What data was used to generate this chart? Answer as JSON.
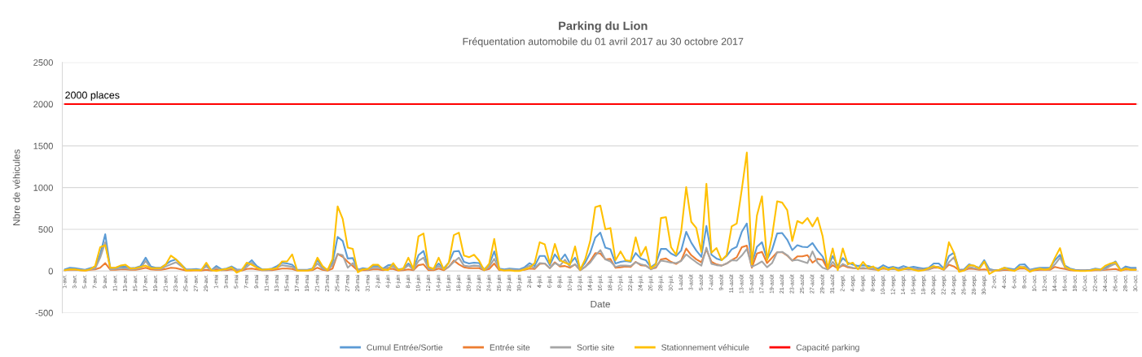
{
  "chart_data": {
    "type": "line",
    "title": "Parking du Lion",
    "subtitle": "Fréquentation automobile du 01 avril 2017 au 30 octobre 2017",
    "xlabel": "Date",
    "ylabel": "Nbre de véhicules",
    "categories": [
      "1-avr.",
      null,
      "3-avr.",
      null,
      "5-avr.",
      null,
      "7-avr.",
      null,
      "9-avr.",
      null,
      "11-avr.",
      null,
      "13-avr.",
      null,
      "15-avr.",
      null,
      "17-avr.",
      null,
      "19-avr.",
      null,
      "21-avr.",
      null,
      "23-avr.",
      null,
      "25-avr.",
      null,
      "27-avr.",
      null,
      "29-avr.",
      null,
      "1-mai",
      null,
      "3-mai",
      null,
      "5-mai",
      null,
      "7-mai",
      null,
      "9-mai",
      null,
      "11-mai",
      null,
      "13-mai",
      null,
      "15-mai",
      null,
      "17-mai",
      null,
      "19-mai",
      null,
      "21-mai",
      null,
      "23-mai",
      null,
      "25-mai",
      null,
      "27-mai",
      null,
      "29-mai",
      null,
      "31-mai",
      null,
      "2-juin",
      null,
      "4-juin",
      null,
      "6-juin",
      null,
      "8-juin",
      null,
      "10-juin",
      null,
      "12-juin",
      null,
      "14-juin",
      null,
      "16-juin",
      null,
      "18-juin",
      null,
      "20-juin",
      null,
      "22-juin",
      null,
      "24-juin",
      null,
      "26-juin",
      null,
      "28-juin",
      null,
      "30-juin",
      null,
      "2-juil.",
      null,
      "4-juil.",
      null,
      "6-juil.",
      null,
      "8-juil.",
      null,
      "10-juil.",
      null,
      "12-juil.",
      null,
      "14-juil.",
      null,
      "16-juil.",
      null,
      "18-juil.",
      null,
      "20-juil.",
      null,
      "22-juil.",
      null,
      "24-juil.",
      null,
      "26-juil.",
      null,
      "28-juil.",
      null,
      "30-juil.",
      null,
      "1-août",
      null,
      "3-août",
      null,
      "5-août",
      null,
      "7-août",
      null,
      "9-août",
      null,
      "11-août",
      null,
      "13-août",
      null,
      "15-août",
      null,
      "17-août",
      null,
      "19-août",
      null,
      "21-août",
      null,
      "23-août",
      null,
      "25-août",
      null,
      "27-août",
      null,
      "29-août",
      null,
      "31-août",
      null,
      "2-sept.",
      null,
      "4-sept.",
      null,
      "6-sept.",
      null,
      "8-sept.",
      null,
      "10-sept.",
      null,
      "12-sept.",
      null,
      "14-sept.",
      null,
      "16-sept.",
      null,
      "18-sept.",
      null,
      "20-sept.",
      null,
      "22-sept.",
      null,
      "24-sept.",
      null,
      "26-sept.",
      null,
      "28-sept.",
      null,
      "30-sept.",
      null,
      "2-oct.",
      null,
      "4-oct.",
      null,
      "6-oct.",
      null,
      "8-oct.",
      null,
      "10-oct.",
      null,
      "12-oct.",
      null,
      "14-oct.",
      null,
      "16-oct.",
      null,
      "18-oct.",
      null,
      "20-oct.",
      null,
      "22-oct.",
      null,
      "24-oct.",
      null,
      "26-oct.",
      null,
      "28-oct.",
      null,
      "30-oct."
    ],
    "series": [
      {
        "name": "Cumul Entrée/Sortie",
        "color": "#5b9bd5",
        "values": [
          20,
          40,
          35,
          25,
          15,
          35,
          50,
          200,
          440,
          35,
          40,
          50,
          55,
          35,
          40,
          60,
          160,
          55,
          40,
          40,
          80,
          120,
          140,
          80,
          20,
          20,
          25,
          15,
          70,
          10,
          60,
          20,
          30,
          55,
          20,
          15,
          75,
          130,
          60,
          20,
          20,
          30,
          60,
          100,
          90,
          75,
          15,
          15,
          15,
          30,
          130,
          45,
          15,
          100,
          410,
          360,
          150,
          155,
          15,
          35,
          25,
          60,
          60,
          30,
          70,
          75,
          20,
          30,
          90,
          25,
          190,
          240,
          35,
          30,
          90,
          30,
          100,
          235,
          240,
          110,
          90,
          100,
          95,
          20,
          75,
          235,
          30,
          20,
          30,
          25,
          20,
          45,
          95,
          60,
          180,
          180,
          70,
          200,
          120,
          200,
          90,
          160,
          20,
          100,
          220,
          400,
          460,
          280,
          260,
          90,
          110,
          120,
          110,
          215,
          150,
          130,
          45,
          90,
          265,
          265,
          210,
          180,
          245,
          470,
          340,
          245,
          170,
          540,
          195,
          150,
          130,
          180,
          260,
          290,
          470,
          570,
          90,
          290,
          345,
          140,
          255,
          450,
          455,
          375,
          250,
          310,
          290,
          285,
          335,
          245,
          175,
          40,
          180,
          60,
          155,
          100,
          75,
          60,
          70,
          60,
          45,
          30,
          70,
          40,
          50,
          35,
          60,
          40,
          50,
          40,
          30,
          40,
          90,
          90,
          30,
          180,
          220,
          15,
          20,
          80,
          60,
          40,
          130,
          25,
          10,
          15,
          40,
          30,
          20,
          75,
          80,
          15,
          30,
          40,
          40,
          40,
          130,
          195,
          65,
          30,
          15,
          10,
          10,
          15,
          30,
          20,
          40,
          80,
          115,
          15,
          55,
          40,
          40
        ]
      },
      {
        "name": "Entrée site",
        "color": "#ed7d31",
        "values": [
          10,
          15,
          15,
          10,
          5,
          15,
          20,
          40,
          95,
          15,
          15,
          20,
          20,
          15,
          15,
          25,
          40,
          20,
          15,
          15,
          25,
          40,
          35,
          20,
          5,
          5,
          10,
          5,
          15,
          5,
          20,
          10,
          10,
          20,
          5,
          5,
          25,
          30,
          20,
          10,
          10,
          10,
          20,
          30,
          30,
          25,
          5,
          5,
          5,
          10,
          40,
          15,
          5,
          30,
          205,
          170,
          110,
          60,
          5,
          10,
          10,
          20,
          20,
          10,
          25,
          25,
          5,
          10,
          20,
          10,
          70,
          80,
          10,
          10,
          30,
          10,
          50,
          125,
          80,
          45,
          35,
          35,
          35,
          10,
          25,
          90,
          10,
          10,
          10,
          10,
          10,
          15,
          30,
          25,
          85,
          90,
          35,
          105,
          55,
          60,
          40,
          80,
          10,
          50,
          120,
          215,
          210,
          140,
          145,
          40,
          45,
          55,
          50,
          110,
          70,
          65,
          25,
          40,
          140,
          150,
          110,
          85,
          125,
          270,
          190,
          140,
          105,
          260,
          110,
          80,
          65,
          90,
          130,
          165,
          285,
          305,
          40,
          210,
          230,
          95,
          160,
          225,
          225,
          185,
          125,
          175,
          175,
          190,
          100,
          145,
          135,
          20,
          70,
          30,
          70,
          45,
          35,
          30,
          30,
          30,
          20,
          15,
          30,
          20,
          25,
          15,
          25,
          20,
          20,
          20,
          15,
          20,
          40,
          40,
          15,
          75,
          55,
          10,
          10,
          30,
          25,
          15,
          20,
          10,
          5,
          5,
          15,
          10,
          10,
          30,
          30,
          5,
          10,
          15,
          15,
          15,
          50,
          35,
          25,
          10,
          5,
          5,
          5,
          5,
          10,
          10,
          15,
          20,
          25,
          5,
          20,
          15,
          15
        ]
      },
      {
        "name": "Sortie site",
        "color": "#a5a5a5",
        "values": [
          10,
          25,
          20,
          15,
          10,
          20,
          30,
          160,
          345,
          20,
          25,
          30,
          35,
          20,
          25,
          35,
          120,
          35,
          25,
          25,
          55,
          80,
          105,
          60,
          15,
          15,
          15,
          10,
          55,
          5,
          40,
          10,
          20,
          35,
          15,
          10,
          50,
          100,
          40,
          10,
          10,
          20,
          40,
          70,
          60,
          50,
          10,
          10,
          10,
          20,
          90,
          30,
          10,
          70,
          205,
          190,
          40,
          95,
          10,
          25,
          15,
          40,
          40,
          20,
          45,
          50,
          15,
          20,
          70,
          15,
          120,
          160,
          25,
          20,
          60,
          20,
          50,
          110,
          160,
          65,
          55,
          65,
          60,
          10,
          50,
          145,
          20,
          10,
          20,
          15,
          10,
          30,
          65,
          35,
          95,
          90,
          35,
          95,
          65,
          135,
          50,
          80,
          10,
          50,
          100,
          185,
          250,
          140,
          115,
          50,
          65,
          65,
          60,
          105,
          80,
          65,
          20,
          50,
          125,
          115,
          100,
          95,
          120,
          200,
          150,
          105,
          65,
          280,
          85,
          70,
          65,
          90,
          130,
          125,
          185,
          265,
          50,
          80,
          115,
          45,
          95,
          225,
          230,
          190,
          125,
          135,
          115,
          95,
          235,
          100,
          40,
          20,
          110,
          30,
          85,
          55,
          40,
          30,
          40,
          30,
          25,
          15,
          40,
          20,
          25,
          20,
          35,
          20,
          30,
          20,
          15,
          20,
          50,
          50,
          15,
          105,
          165,
          5,
          10,
          50,
          35,
          25,
          110,
          15,
          5,
          10,
          25,
          20,
          10,
          45,
          50,
          10,
          20,
          25,
          25,
          25,
          80,
          160,
          40,
          20,
          10,
          5,
          5,
          10,
          20,
          10,
          25,
          60,
          90,
          10,
          35,
          25,
          25
        ]
      },
      {
        "name": "Stationnement véhicule",
        "color": "#ffc000",
        "values": [
          10,
          20,
          20,
          10,
          5,
          20,
          60,
          285,
          310,
          40,
          40,
          65,
          75,
          30,
          35,
          50,
          65,
          35,
          35,
          35,
          80,
          185,
          140,
          80,
          5,
          10,
          10,
          10,
          100,
          10,
          0,
          15,
          25,
          45,
          -20,
          10,
          100,
          75,
          40,
          15,
          20,
          25,
          35,
          115,
          115,
          200,
          5,
          5,
          5,
          20,
          160,
          60,
          10,
          145,
          775,
          625,
          280,
          265,
          -15,
          20,
          25,
          75,
          75,
          20,
          10,
          95,
          10,
          30,
          160,
          25,
          415,
          450,
          50,
          25,
          160,
          20,
          100,
          430,
          460,
          185,
          165,
          195,
          125,
          10,
          90,
          385,
          20,
          5,
          10,
          0,
          0,
          20,
          40,
          95,
          345,
          320,
          90,
          325,
          130,
          100,
          75,
          295,
          15,
          140,
          360,
          765,
          785,
          500,
          515,
          130,
          235,
          130,
          120,
          405,
          180,
          290,
          30,
          80,
          635,
          645,
          285,
          195,
          470,
          1005,
          590,
          515,
          230,
          1045,
          220,
          275,
          130,
          190,
          535,
          570,
          975,
          1420,
          80,
          665,
          895,
          130,
          420,
          835,
          820,
          730,
          360,
          600,
          570,
          635,
          535,
          640,
          420,
          30,
          270,
          10,
          270,
          80,
          100,
          20,
          110,
          35,
          55,
          5,
          45,
          15,
          40,
          5,
          20,
          40,
          15,
          0,
          10,
          35,
          60,
          40,
          20,
          345,
          220,
          -10,
          5,
          70,
          65,
          30,
          115,
          -35,
          0,
          15,
          40,
          15,
          0,
          50,
          40,
          -10,
          15,
          30,
          15,
          30,
          160,
          275,
          50,
          20,
          5,
          0,
          0,
          5,
          20,
          15,
          65,
          90,
          105,
          5,
          30,
          15,
          15
        ]
      },
      {
        "name": "Capacité parking",
        "color": "#ff0000",
        "values": [
          2000,
          2000,
          2000,
          2000,
          2000,
          2000,
          2000,
          2000,
          2000,
          2000,
          2000,
          2000,
          2000,
          2000,
          2000,
          2000,
          2000,
          2000,
          2000,
          2000,
          2000,
          2000,
          2000,
          2000,
          2000,
          2000,
          2000,
          2000,
          2000,
          2000,
          2000,
          2000,
          2000,
          2000,
          2000,
          2000,
          2000,
          2000,
          2000,
          2000,
          2000,
          2000,
          2000,
          2000,
          2000,
          2000,
          2000,
          2000,
          2000,
          2000,
          2000,
          2000,
          2000,
          2000,
          2000,
          2000,
          2000,
          2000,
          2000,
          2000,
          2000,
          2000,
          2000,
          2000,
          2000,
          2000,
          2000,
          2000,
          2000,
          2000,
          2000,
          2000,
          2000,
          2000,
          2000,
          2000,
          2000,
          2000,
          2000,
          2000,
          2000,
          2000,
          2000,
          2000,
          2000,
          2000,
          2000,
          2000,
          2000,
          2000,
          2000,
          2000,
          2000,
          2000,
          2000,
          2000,
          2000,
          2000,
          2000,
          2000,
          2000,
          2000,
          2000,
          2000,
          2000,
          2000,
          2000,
          2000,
          2000,
          2000,
          2000,
          2000,
          2000,
          2000,
          2000,
          2000,
          2000,
          2000,
          2000,
          2000,
          2000,
          2000,
          2000,
          2000,
          2000,
          2000,
          2000,
          2000,
          2000,
          2000,
          2000,
          2000,
          2000,
          2000,
          2000,
          2000,
          2000,
          2000,
          2000,
          2000,
          2000,
          2000,
          2000,
          2000,
          2000,
          2000,
          2000,
          2000,
          2000,
          2000,
          2000,
          2000,
          2000,
          2000,
          2000,
          2000,
          2000,
          2000,
          2000,
          2000,
          2000,
          2000,
          2000,
          2000,
          2000,
          2000,
          2000,
          2000,
          2000,
          2000,
          2000,
          2000,
          2000,
          2000,
          2000,
          2000,
          2000,
          2000,
          2000,
          2000,
          2000,
          2000,
          2000,
          2000,
          2000,
          2000,
          2000,
          2000,
          2000,
          2000,
          2000,
          2000,
          2000,
          2000,
          2000,
          2000,
          2000,
          2000,
          2000,
          2000,
          2000,
          2000,
          2000,
          2000,
          2000,
          2000,
          2000,
          2000,
          2000,
          2000,
          2000,
          2000,
          2000
        ]
      }
    ],
    "ylim": [
      -500,
      2500
    ],
    "yticks": [
      -500,
      0,
      500,
      1000,
      1500,
      2000,
      2500
    ],
    "grid": "y",
    "legend": "bottom",
    "annotations": [
      {
        "text": "2000 places",
        "x": "1-avr.",
        "y": 2000
      }
    ]
  }
}
